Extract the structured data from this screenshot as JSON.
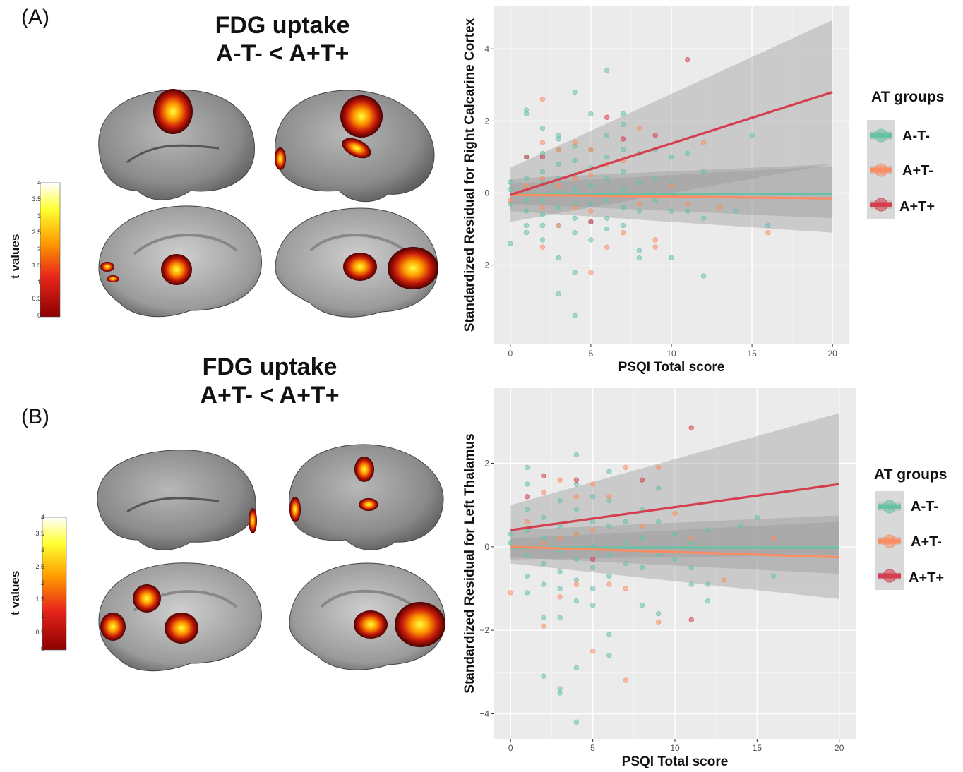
{
  "panelA": {
    "label": "(A)",
    "title_line1": "FDG uptake",
    "title_line2": "A-T- < A+T+",
    "colorbar": {
      "label": "t values",
      "ticks": [
        "4",
        "3.5",
        "3",
        "2.5",
        "2",
        "1.5",
        "1",
        "0.5",
        "0"
      ]
    }
  },
  "panelB": {
    "label": "(B)",
    "title_line1": "FDG uptake",
    "title_line2": "A+T- < A+T+",
    "colorbar": {
      "label": "t values",
      "ticks": [
        "4",
        "3.5",
        "3",
        "2.5",
        "2",
        "1.5",
        "1",
        "0.5",
        "0"
      ]
    }
  },
  "legend": {
    "title": "AT groups",
    "items": [
      {
        "label": "A-T-",
        "color": "#66c2a5"
      },
      {
        "label": "A+T-",
        "color": "#fc8d62"
      },
      {
        "label": "A+T+",
        "color": "#d53e4f"
      }
    ]
  },
  "chart_data": [
    {
      "type": "scatter",
      "xlabel": "PSQI Total score",
      "ylabel": "Standardized Residual for Right Calcarine Cortex",
      "xlim": [
        -1,
        21
      ],
      "ylim": [
        -4.2,
        5.2
      ],
      "xticks": [
        0,
        5,
        10,
        15,
        20
      ],
      "yticks": [
        -2,
        0,
        2,
        4
      ],
      "grid": true,
      "legend_position": "right",
      "series": [
        {
          "name": "A-T-",
          "color": "#66c2a5",
          "points": [
            [
              0,
              0.3
            ],
            [
              0,
              -0.3
            ],
            [
              0,
              -1.4
            ],
            [
              0,
              0.1
            ],
            [
              1,
              2.3
            ],
            [
              1,
              2.2
            ],
            [
              1,
              1.0
            ],
            [
              1,
              0.4
            ],
            [
              1,
              -0.2
            ],
            [
              1,
              -0.5
            ],
            [
              1,
              -0.9
            ],
            [
              1,
              -1.1
            ],
            [
              2,
              1.8
            ],
            [
              2,
              1.1
            ],
            [
              2,
              0.6
            ],
            [
              2,
              0.3
            ],
            [
              2,
              -0.2
            ],
            [
              2,
              -0.6
            ],
            [
              2,
              -0.9
            ],
            [
              2,
              -1.3
            ],
            [
              3,
              1.6
            ],
            [
              3,
              1.5
            ],
            [
              3,
              1.2
            ],
            [
              3,
              0.8
            ],
            [
              3,
              0.4
            ],
            [
              3,
              0.0
            ],
            [
              3,
              -0.4
            ],
            [
              3,
              -0.9
            ],
            [
              3,
              -1.8
            ],
            [
              3,
              -2.8
            ],
            [
              4,
              2.8
            ],
            [
              4,
              1.3
            ],
            [
              4,
              0.9
            ],
            [
              4,
              0.5
            ],
            [
              4,
              0.1
            ],
            [
              4,
              -0.3
            ],
            [
              4,
              -0.7
            ],
            [
              4,
              -1.1
            ],
            [
              4,
              -2.2
            ],
            [
              4,
              -3.4
            ],
            [
              5,
              2.2
            ],
            [
              5,
              1.2
            ],
            [
              5,
              0.7
            ],
            [
              5,
              0.2
            ],
            [
              5,
              -0.3
            ],
            [
              5,
              -0.8
            ],
            [
              5,
              -1.3
            ],
            [
              6,
              3.4
            ],
            [
              6,
              1.6
            ],
            [
              6,
              1.0
            ],
            [
              6,
              0.4
            ],
            [
              6,
              -0.2
            ],
            [
              6,
              -0.7
            ],
            [
              6,
              -1.0
            ],
            [
              7,
              2.2
            ],
            [
              7,
              1.9
            ],
            [
              7,
              1.2
            ],
            [
              7,
              0.6
            ],
            [
              7,
              0.1
            ],
            [
              7,
              -0.4
            ],
            [
              7,
              -0.9
            ],
            [
              8,
              1.1
            ],
            [
              8,
              0.3
            ],
            [
              8,
              -0.5
            ],
            [
              8,
              -1.6
            ],
            [
              8,
              -1.8
            ],
            [
              9,
              1.2
            ],
            [
              9,
              0.4
            ],
            [
              9,
              -0.2
            ],
            [
              10,
              1.0
            ],
            [
              10,
              0.3
            ],
            [
              10,
              -0.5
            ],
            [
              10,
              -1.8
            ],
            [
              11,
              1.1
            ],
            [
              11,
              -0.5
            ],
            [
              12,
              0.6
            ],
            [
              12,
              -0.7
            ],
            [
              12,
              -2.3
            ],
            [
              14,
              -0.5
            ],
            [
              15,
              1.6
            ],
            [
              16,
              -0.9
            ]
          ]
        },
        {
          "name": "A+T-",
          "color": "#fc8d62",
          "points": [
            [
              0,
              -0.2
            ],
            [
              1,
              0.2
            ],
            [
              2,
              2.6
            ],
            [
              2,
              1.4
            ],
            [
              2,
              0.4
            ],
            [
              2,
              -0.4
            ],
            [
              2,
              -1.5
            ],
            [
              3,
              1.2
            ],
            [
              3,
              0.2
            ],
            [
              3,
              -0.9
            ],
            [
              4,
              1.4
            ],
            [
              4,
              0.4
            ],
            [
              4,
              -0.4
            ],
            [
              5,
              1.2
            ],
            [
              5,
              0.5
            ],
            [
              5,
              -0.5
            ],
            [
              5,
              -2.2
            ],
            [
              6,
              0.8
            ],
            [
              6,
              -1.5
            ],
            [
              7,
              0.9
            ],
            [
              7,
              -1.1
            ],
            [
              8,
              1.8
            ],
            [
              8,
              -0.3
            ],
            [
              9,
              -1.3
            ],
            [
              9,
              -1.5
            ],
            [
              10,
              0.2
            ],
            [
              11,
              -0.3
            ],
            [
              12,
              1.4
            ],
            [
              13,
              -0.4
            ],
            [
              16,
              -1.1
            ]
          ]
        },
        {
          "name": "A+T+",
          "color": "#d53e4f",
          "points": [
            [
              1,
              1.0
            ],
            [
              2,
              1.0
            ],
            [
              5,
              -0.8
            ],
            [
              6,
              2.1
            ],
            [
              7,
              1.5
            ],
            [
              9,
              1.6
            ],
            [
              11,
              3.7
            ]
          ]
        }
      ],
      "fits": [
        {
          "name": "A-T-",
          "y_at_0": -0.02,
          "y_at_20": -0.02,
          "ci_at_0": [
            -0.3,
            0.25
          ],
          "ci_at_20": [
            -0.7,
            0.75
          ]
        },
        {
          "name": "A+T-",
          "y_at_0": -0.05,
          "y_at_20": -0.15,
          "ci_at_0": [
            -0.5,
            0.4
          ],
          "ci_at_20": [
            -1.1,
            0.8
          ]
        },
        {
          "name": "A+T+",
          "y_at_0": -0.05,
          "y_at_20": 2.8,
          "ci_at_0": [
            -0.8,
            0.7
          ],
          "ci_at_20": [
            0.8,
            4.8
          ]
        }
      ]
    },
    {
      "type": "scatter",
      "xlabel": "PSQI Total score",
      "ylabel": "Standardized Residual for Left Thalamus",
      "xlim": [
        -1,
        21
      ],
      "ylim": [
        -4.6,
        3.8
      ],
      "xticks": [
        0,
        5,
        10,
        15,
        20
      ],
      "yticks": [
        -4,
        -2,
        0,
        2
      ],
      "grid": true,
      "legend_position": "right",
      "series": [
        {
          "name": "A-T-",
          "color": "#66c2a5",
          "points": [
            [
              0,
              0.3
            ],
            [
              0,
              0.1
            ],
            [
              1,
              1.9
            ],
            [
              1,
              1.5
            ],
            [
              1,
              0.9
            ],
            [
              1,
              0.4
            ],
            [
              1,
              -0.2
            ],
            [
              1,
              -0.7
            ],
            [
              1,
              -1.1
            ],
            [
              2,
              0.7
            ],
            [
              2,
              0.2
            ],
            [
              2,
              -0.4
            ],
            [
              2,
              -0.9
            ],
            [
              2,
              -1.7
            ],
            [
              2,
              -3.1
            ],
            [
              3,
              1.1
            ],
            [
              3,
              0.5
            ],
            [
              3,
              -0.1
            ],
            [
              3,
              -0.6
            ],
            [
              3,
              -1.0
            ],
            [
              3,
              -1.7
            ],
            [
              3,
              -3.4
            ],
            [
              3,
              -3.5
            ],
            [
              4,
              2.2
            ],
            [
              4,
              1.5
            ],
            [
              4,
              0.9
            ],
            [
              4,
              0.3
            ],
            [
              4,
              -0.3
            ],
            [
              4,
              -0.8
            ],
            [
              4,
              -1.3
            ],
            [
              4,
              -2.9
            ],
            [
              4,
              -4.2
            ],
            [
              5,
              1.2
            ],
            [
              5,
              0.6
            ],
            [
              5,
              0.0
            ],
            [
              5,
              -0.5
            ],
            [
              5,
              -1.0
            ],
            [
              5,
              -1.4
            ],
            [
              6,
              1.8
            ],
            [
              6,
              1.1
            ],
            [
              6,
              0.5
            ],
            [
              6,
              -0.2
            ],
            [
              6,
              -0.7
            ],
            [
              6,
              -2.1
            ],
            [
              6,
              -2.6
            ],
            [
              7,
              0.6
            ],
            [
              7,
              0.1
            ],
            [
              7,
              -0.4
            ],
            [
              8,
              0.9
            ],
            [
              8,
              0.2
            ],
            [
              8,
              -0.5
            ],
            [
              8,
              -1.4
            ],
            [
              9,
              1.4
            ],
            [
              9,
              0.6
            ],
            [
              9,
              -0.2
            ],
            [
              9,
              -1.6
            ],
            [
              10,
              0.3
            ],
            [
              10,
              -0.3
            ],
            [
              11,
              0.1
            ],
            [
              11,
              -0.5
            ],
            [
              11,
              -0.9
            ],
            [
              12,
              0.4
            ],
            [
              12,
              -0.9
            ],
            [
              12,
              -1.3
            ],
            [
              14,
              0.5
            ],
            [
              15,
              0.7
            ],
            [
              16,
              -0.7
            ]
          ]
        },
        {
          "name": "A+T-",
          "color": "#fc8d62",
          "points": [
            [
              0,
              -1.1
            ],
            [
              1,
              0.6
            ],
            [
              2,
              1.3
            ],
            [
              2,
              0.1
            ],
            [
              2,
              -1.9
            ],
            [
              3,
              1.6
            ],
            [
              3,
              0.2
            ],
            [
              3,
              -1.2
            ],
            [
              4,
              1.2
            ],
            [
              4,
              0.3
            ],
            [
              4,
              -0.9
            ],
            [
              5,
              1.5
            ],
            [
              5,
              0.4
            ],
            [
              5,
              -2.5
            ],
            [
              6,
              1.2
            ],
            [
              6,
              -0.9
            ],
            [
              7,
              1.9
            ],
            [
              7,
              -1.0
            ],
            [
              7,
              -3.2
            ],
            [
              8,
              0.5
            ],
            [
              9,
              1.9
            ],
            [
              9,
              -1.8
            ],
            [
              10,
              0.8
            ],
            [
              11,
              0.2
            ],
            [
              13,
              -0.8
            ],
            [
              16,
              0.2
            ]
          ]
        },
        {
          "name": "A+T+",
          "color": "#d53e4f",
          "points": [
            [
              1,
              1.2
            ],
            [
              2,
              1.7
            ],
            [
              4,
              1.6
            ],
            [
              5,
              -0.3
            ],
            [
              8,
              1.6
            ],
            [
              11,
              2.85
            ],
            [
              11,
              -1.75
            ]
          ]
        }
      ],
      "fits": [
        {
          "name": "A-T-",
          "y_at_0": -0.02,
          "y_at_20": -0.02,
          "ci_at_0": [
            -0.25,
            0.2
          ],
          "ci_at_20": [
            -0.65,
            0.6
          ]
        },
        {
          "name": "A+T-",
          "y_at_0": 0.0,
          "y_at_20": -0.25,
          "ci_at_0": [
            -0.4,
            0.4
          ],
          "ci_at_20": [
            -1.25,
            0.75
          ]
        },
        {
          "name": "A+T+",
          "y_at_0": 0.4,
          "y_at_20": 1.5,
          "ci_at_0": [
            -0.3,
            1.0
          ],
          "ci_at_20": [
            -0.2,
            3.2
          ]
        }
      ]
    }
  ]
}
